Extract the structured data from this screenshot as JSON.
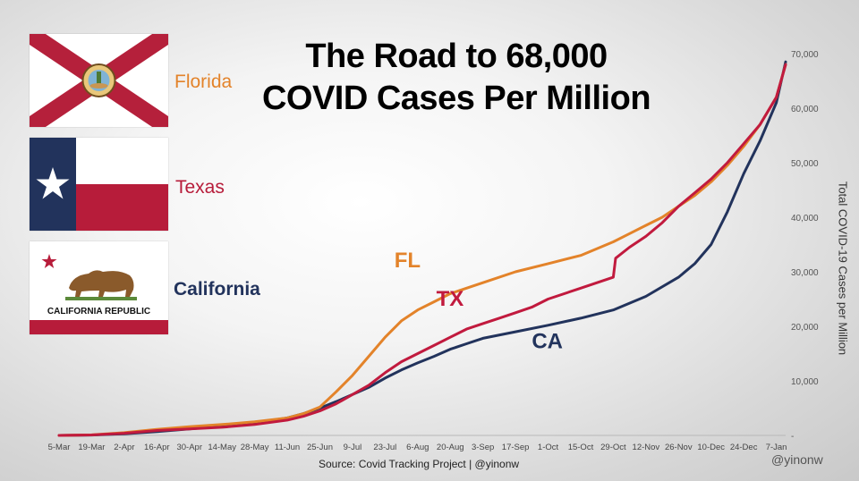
{
  "title_line1": "The Road to 68,000",
  "title_line2": "COVID Cases Per Million",
  "states": {
    "florida": "Florida",
    "texas": "Texas",
    "california": "California"
  },
  "flag_text": {
    "california": "CALIFORNIA REPUBLIC"
  },
  "source": "Source: Covid Tracking Project | @yinonw",
  "handle": "@yinonw",
  "colors": {
    "FL": "#e3832a",
    "TX": "#c11a3e",
    "CA": "#22335c"
  },
  "chart_data": {
    "type": "line",
    "ylabel": "Total COVID-19 Cases per Million",
    "ylim": [
      0,
      70000
    ],
    "y_ticks": [
      "-",
      "10,000",
      "20,000",
      "30,000",
      "40,000",
      "50,000",
      "60,000",
      "70,000"
    ],
    "x_ticks": [
      "5-Mar",
      "19-Mar",
      "2-Apr",
      "16-Apr",
      "30-Apr",
      "14-May",
      "28-May",
      "11-Jun",
      "25-Jun",
      "9-Jul",
      "23-Jul",
      "6-Aug",
      "20-Aug",
      "3-Sep",
      "17-Sep",
      "1-Oct",
      "15-Oct",
      "29-Oct",
      "12-Nov",
      "26-Nov",
      "10-Dec",
      "24-Dec",
      "7-Jan"
    ],
    "x_range": [
      "5-Mar",
      "11-Jan"
    ],
    "legend": "inline labels",
    "series": [
      {
        "name": "FL",
        "points": [
          [
            "5-Mar",
            0
          ],
          [
            "19-Mar",
            100
          ],
          [
            "2-Apr",
            500
          ],
          [
            "16-Apr",
            1100
          ],
          [
            "30-Apr",
            1600
          ],
          [
            "14-May",
            2000
          ],
          [
            "28-May",
            2500
          ],
          [
            "11-Jun",
            3200
          ],
          [
            "18-Jun",
            4000
          ],
          [
            "25-Jun",
            5200
          ],
          [
            "2-Jul",
            8000
          ],
          [
            "9-Jul",
            11000
          ],
          [
            "16-Jul",
            14500
          ],
          [
            "23-Jul",
            18000
          ],
          [
            "30-Jul",
            21000
          ],
          [
            "6-Aug",
            23000
          ],
          [
            "13-Aug",
            24500
          ],
          [
            "20-Aug",
            26000
          ],
          [
            "27-Aug",
            27000
          ],
          [
            "3-Sep",
            28000
          ],
          [
            "17-Sep",
            30000
          ],
          [
            "1-Oct",
            31500
          ],
          [
            "15-Oct",
            33000
          ],
          [
            "29-Oct",
            35500
          ],
          [
            "5-Nov",
            37000
          ],
          [
            "12-Nov",
            38500
          ],
          [
            "19-Nov",
            40000
          ],
          [
            "26-Nov",
            42000
          ],
          [
            "3-Dec",
            44000
          ],
          [
            "10-Dec",
            46500
          ],
          [
            "17-Dec",
            49500
          ],
          [
            "24-Dec",
            53000
          ],
          [
            "31-Dec",
            57000
          ],
          [
            "7-Jan",
            62000
          ],
          [
            "11-Jan",
            68000
          ]
        ]
      },
      {
        "name": "TX",
        "points": [
          [
            "5-Mar",
            0
          ],
          [
            "19-Mar",
            80
          ],
          [
            "2-Apr",
            400
          ],
          [
            "16-Apr",
            900
          ],
          [
            "30-Apr",
            1200
          ],
          [
            "14-May",
            1500
          ],
          [
            "28-May",
            2000
          ],
          [
            "11-Jun",
            2800
          ],
          [
            "18-Jun",
            3500
          ],
          [
            "25-Jun",
            4500
          ],
          [
            "2-Jul",
            5800
          ],
          [
            "9-Jul",
            7500
          ],
          [
            "16-Jul",
            9200
          ],
          [
            "23-Jul",
            11500
          ],
          [
            "30-Jul",
            13500
          ],
          [
            "6-Aug",
            15000
          ],
          [
            "13-Aug",
            16500
          ],
          [
            "20-Aug",
            18000
          ],
          [
            "27-Aug",
            19500
          ],
          [
            "3-Sep",
            20500
          ],
          [
            "10-Sep",
            21500
          ],
          [
            "17-Sep",
            22500
          ],
          [
            "24-Sep",
            23500
          ],
          [
            "1-Oct",
            25000
          ],
          [
            "15-Oct",
            27000
          ],
          [
            "29-Oct",
            29000
          ],
          [
            "30-Oct",
            32500
          ],
          [
            "5-Nov",
            34500
          ],
          [
            "12-Nov",
            36500
          ],
          [
            "19-Nov",
            39000
          ],
          [
            "26-Nov",
            42000
          ],
          [
            "3-Dec",
            44500
          ],
          [
            "10-Dec",
            47000
          ],
          [
            "17-Dec",
            50000
          ],
          [
            "24-Dec",
            53500
          ],
          [
            "31-Dec",
            57000
          ],
          [
            "7-Jan",
            62000
          ],
          [
            "11-Jan",
            68000
          ]
        ]
      },
      {
        "name": "CA",
        "points": [
          [
            "5-Mar",
            0
          ],
          [
            "19-Mar",
            70
          ],
          [
            "2-Apr",
            300
          ],
          [
            "16-Apr",
            700
          ],
          [
            "30-Apr",
            1200
          ],
          [
            "14-May",
            1700
          ],
          [
            "28-May",
            2300
          ],
          [
            "11-Jun",
            3200
          ],
          [
            "18-Jun",
            4000
          ],
          [
            "25-Jun",
            5000
          ],
          [
            "2-Jul",
            6200
          ],
          [
            "9-Jul",
            7500
          ],
          [
            "16-Jul",
            8800
          ],
          [
            "23-Jul",
            10500
          ],
          [
            "30-Jul",
            12000
          ],
          [
            "6-Aug",
            13300
          ],
          [
            "13-Aug",
            14500
          ],
          [
            "20-Aug",
            15800
          ],
          [
            "27-Aug",
            16800
          ],
          [
            "3-Sep",
            17800
          ],
          [
            "17-Sep",
            19000
          ],
          [
            "1-Oct",
            20200
          ],
          [
            "15-Oct",
            21500
          ],
          [
            "29-Oct",
            23000
          ],
          [
            "12-Nov",
            25500
          ],
          [
            "26-Nov",
            29000
          ],
          [
            "3-Dec",
            31500
          ],
          [
            "10-Dec",
            35000
          ],
          [
            "17-Dec",
            41000
          ],
          [
            "24-Dec",
            48000
          ],
          [
            "31-Dec",
            54000
          ],
          [
            "7-Jan",
            61000
          ],
          [
            "11-Jan",
            68500
          ]
        ]
      }
    ],
    "annotations": [
      {
        "text": "FL",
        "series": "FL"
      },
      {
        "text": "TX",
        "series": "TX"
      },
      {
        "text": "CA",
        "series": "CA"
      }
    ]
  }
}
